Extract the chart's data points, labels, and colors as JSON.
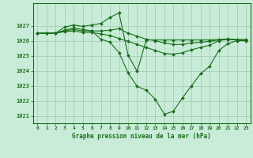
{
  "title": "Graphe pression niveau de la mer (hPa)",
  "background_color": "#c8ecd8",
  "grid_color": "#a0c8b0",
  "line_color": "#1a6e1a",
  "x_min": -0.5,
  "x_max": 23.5,
  "y_min": 1020.5,
  "y_max": 1028.5,
  "yticks": [
    1021,
    1022,
    1023,
    1024,
    1025,
    1026,
    1027
  ],
  "xticks": [
    0,
    1,
    2,
    3,
    4,
    5,
    6,
    7,
    8,
    9,
    10,
    11,
    12,
    13,
    14,
    15,
    16,
    17,
    18,
    19,
    20,
    21,
    22,
    23
  ],
  "line1": [
    1026.5,
    1026.5,
    1026.5,
    1026.6,
    1026.65,
    1026.55,
    1026.55,
    1026.45,
    1026.35,
    1026.15,
    1025.95,
    1025.75,
    1025.55,
    1025.35,
    1025.15,
    1025.1,
    1025.2,
    1025.4,
    1025.55,
    1025.7,
    1026.0,
    1026.1,
    1026.05,
    1026.05
  ],
  "line2": [
    1026.5,
    1026.5,
    1026.5,
    1026.7,
    1026.85,
    1026.75,
    1026.65,
    1026.1,
    1025.9,
    1025.2,
    1023.85,
    1022.95,
    1022.7,
    1022.1,
    1021.1,
    1021.3,
    1022.2,
    1023.0,
    1023.8,
    1024.3,
    1025.35,
    1025.8,
    1026.0,
    1026.0
  ],
  "line3": [
    1026.5,
    1026.5,
    1026.5,
    1026.9,
    1027.05,
    1026.95,
    1027.05,
    1027.15,
    1027.55,
    1027.85,
    1025.05,
    1023.95,
    1026.05,
    1026.05,
    1026.05,
    1026.05,
    1026.05,
    1026.05,
    1026.05,
    1026.05,
    1026.08,
    1026.12,
    1026.08,
    1026.08
  ],
  "line4": [
    1026.5,
    1026.5,
    1026.5,
    1026.65,
    1026.75,
    1026.65,
    1026.65,
    1026.65,
    1026.7,
    1026.8,
    1026.5,
    1026.3,
    1026.1,
    1026.0,
    1025.85,
    1025.75,
    1025.75,
    1025.85,
    1025.9,
    1025.95,
    1026.05,
    1026.1,
    1026.05,
    1026.05
  ]
}
